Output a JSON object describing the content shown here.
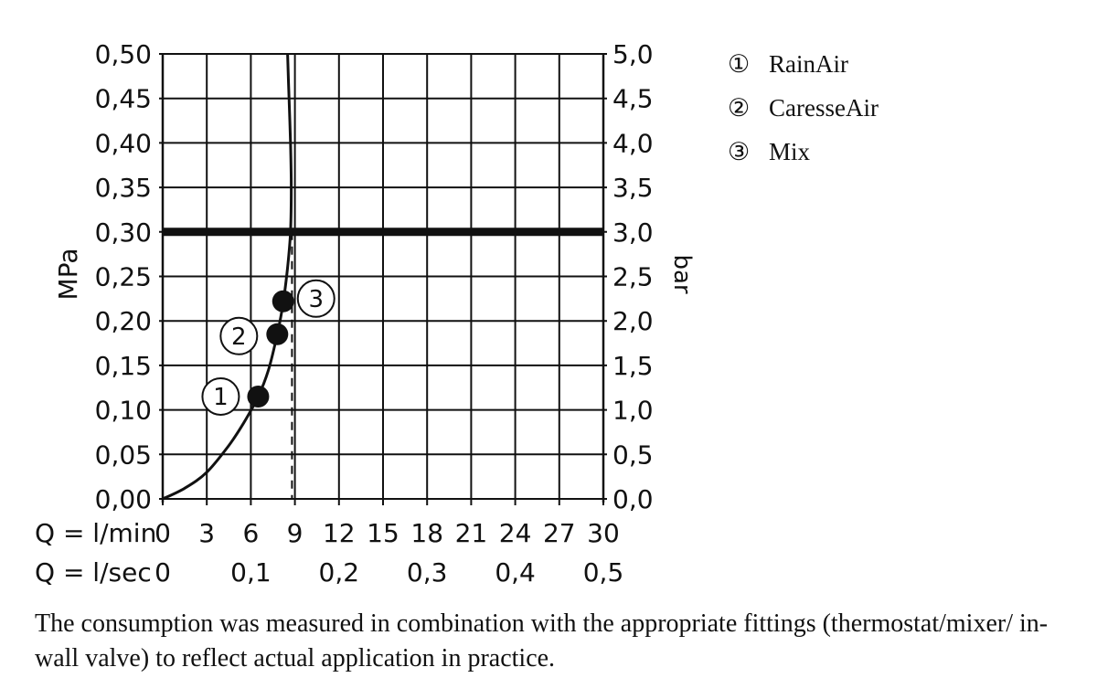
{
  "chart_data": {
    "type": "line",
    "y_left": {
      "label": "MPa",
      "range": [
        0,
        0.5
      ],
      "ticks": [
        "0,00",
        "0,05",
        "0,10",
        "0,15",
        "0,20",
        "0,25",
        "0,30",
        "0,35",
        "0,40",
        "0,45",
        "0,50"
      ]
    },
    "y_right": {
      "label": "bar",
      "range": [
        0,
        5
      ],
      "ticks": [
        "0,0",
        "0,5",
        "1,0",
        "1,5",
        "2,0",
        "2,5",
        "3,0",
        "3,5",
        "4,0",
        "4,5",
        "5,0"
      ]
    },
    "x_primary": {
      "label": "Q = l/min",
      "range": [
        0,
        30
      ],
      "ticks": [
        "0",
        "3",
        "6",
        "9",
        "12",
        "15",
        "18",
        "21",
        "24",
        "27",
        "30"
      ]
    },
    "x_secondary": {
      "label": "Q = l/sec",
      "ticks": [
        "0",
        "0,1",
        "0,2",
        "0,3",
        "0,4",
        "0,5"
      ],
      "tick_lpm": [
        0,
        6,
        12,
        18,
        24,
        30
      ]
    },
    "grid": true,
    "reference_line": {
      "y": 0.3,
      "style": "thick"
    },
    "marker_line": {
      "x": 8.8,
      "style": "dashed"
    },
    "series": [
      {
        "points": [
          {
            "x": 0,
            "y": 0.0
          },
          {
            "x": 1.5,
            "y": 0.012
          },
          {
            "x": 3.0,
            "y": 0.03
          },
          {
            "x": 4.5,
            "y": 0.06
          },
          {
            "x": 5.5,
            "y": 0.085
          },
          {
            "x": 6.5,
            "y": 0.115
          },
          {
            "x": 7.2,
            "y": 0.145
          },
          {
            "x": 7.8,
            "y": 0.185
          },
          {
            "x": 8.2,
            "y": 0.22
          },
          {
            "x": 8.5,
            "y": 0.26
          },
          {
            "x": 8.7,
            "y": 0.3
          },
          {
            "x": 8.75,
            "y": 0.35
          },
          {
            "x": 8.7,
            "y": 0.4
          },
          {
            "x": 8.6,
            "y": 0.45
          },
          {
            "x": 8.5,
            "y": 0.5
          }
        ]
      }
    ],
    "points": [
      {
        "id": "1",
        "x": 6.5,
        "y": 0.115
      },
      {
        "id": "2",
        "x": 7.8,
        "y": 0.185
      },
      {
        "id": "3",
        "x": 8.2,
        "y": 0.222
      }
    ]
  },
  "legend": [
    {
      "symbol": "①",
      "label": "RainAir"
    },
    {
      "symbol": "②",
      "label": "CaresseAir"
    },
    {
      "symbol": "③",
      "label": "Mix"
    }
  ],
  "footnote": "The consumption was measured in combination with the appropriate fittings (thermostat/mixer/ in-wall valve) to reflect actual application in practice."
}
